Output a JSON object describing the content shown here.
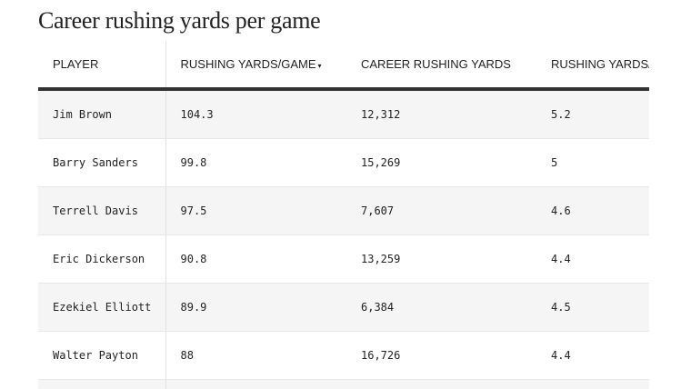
{
  "title": "Career rushing yards per game",
  "columns": [
    "PLAYER",
    "RUSHING YARDS/GAME",
    "CAREER RUSHING YARDS",
    "RUSHING YARDS/ATTEMPT"
  ],
  "sort_indicator": "▾",
  "rows": [
    [
      "Jim Brown",
      "104.3",
      "12,312",
      "5.2"
    ],
    [
      "Barry Sanders",
      "99.8",
      "15,269",
      "5"
    ],
    [
      "Terrell Davis",
      "97.5",
      "7,607",
      "4.6"
    ],
    [
      "Eric Dickerson",
      "90.8",
      "13,259",
      "4.4"
    ],
    [
      "Ezekiel Elliott",
      "89.9",
      "6,384",
      "4.5"
    ],
    [
      "Walter Payton",
      "88",
      "16,726",
      "4.4"
    ]
  ]
}
